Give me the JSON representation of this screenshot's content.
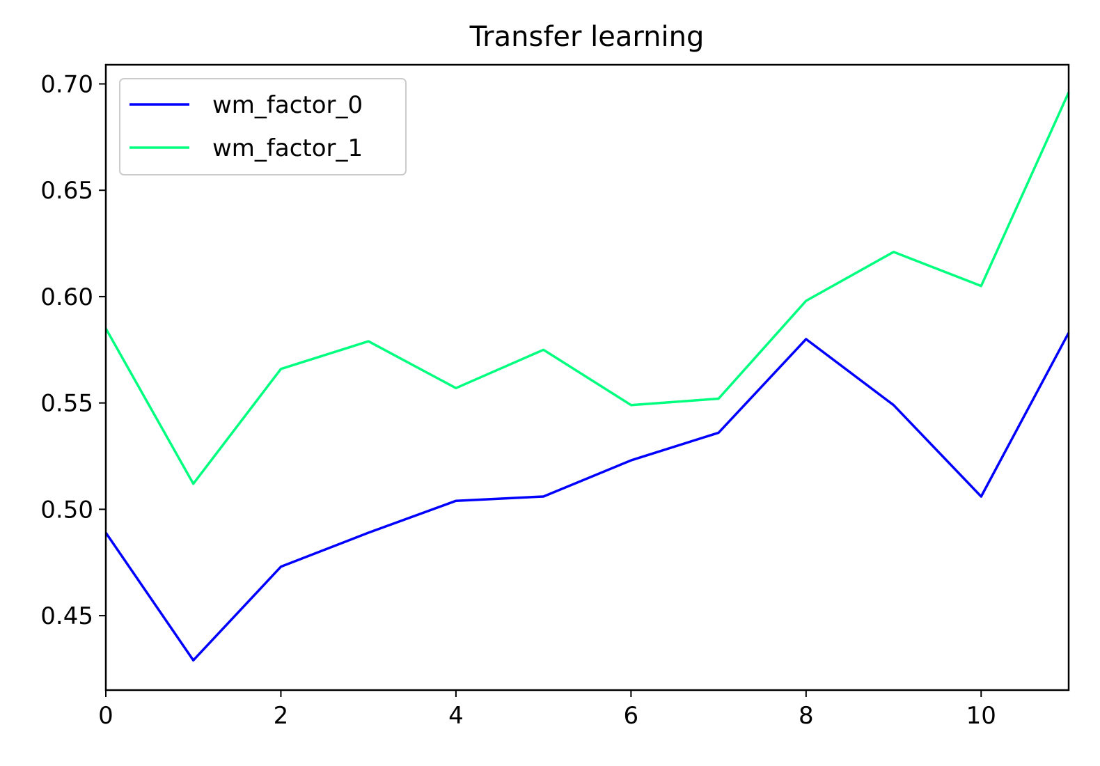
{
  "chart_data": {
    "type": "line",
    "title": "Transfer learning",
    "xlabel": "",
    "ylabel": "",
    "x": [
      0,
      1,
      2,
      3,
      4,
      5,
      6,
      7,
      8,
      9,
      10,
      11
    ],
    "xlim": [
      0,
      11
    ],
    "ylim": [
      0.415,
      0.709
    ],
    "xticks": [
      0,
      2,
      4,
      6,
      8,
      10
    ],
    "xtick_labels": [
      "0",
      "2",
      "4",
      "6",
      "8",
      "10"
    ],
    "yticks": [
      0.45,
      0.5,
      0.55,
      0.6,
      0.65,
      0.7
    ],
    "ytick_labels": [
      "0.45",
      "0.50",
      "0.55",
      "0.60",
      "0.65",
      "0.70"
    ],
    "grid": false,
    "legend_position": "top-left",
    "series": [
      {
        "name": "wm_factor_0",
        "color": "#0000ff",
        "values": [
          0.489,
          0.429,
          0.473,
          0.489,
          0.504,
          0.506,
          0.523,
          0.536,
          0.58,
          0.549,
          0.506,
          0.583
        ]
      },
      {
        "name": "wm_factor_1",
        "color": "#00ff7f",
        "values": [
          0.585,
          0.512,
          0.566,
          0.579,
          0.557,
          0.575,
          0.549,
          0.552,
          0.598,
          0.621,
          0.605,
          0.696
        ]
      }
    ]
  }
}
